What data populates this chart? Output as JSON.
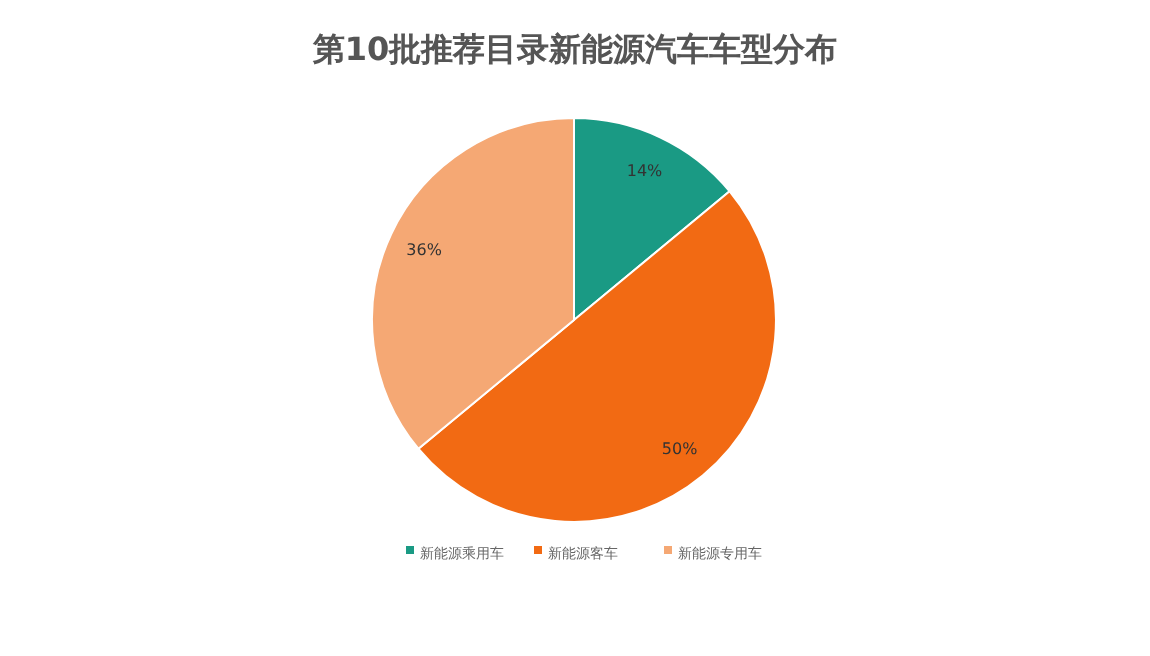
{
  "chart_data": {
    "type": "pie",
    "title": "第10批推荐目录新能源汽车车型分布",
    "categories": [
      "新能源乘用车",
      "新能源客车",
      "新能源专用车"
    ],
    "values": [
      14,
      50,
      36
    ],
    "value_labels": [
      "14%",
      "50%",
      "36%"
    ],
    "colors": [
      "#1a9a84",
      "#f26a13",
      "#f5a874"
    ],
    "legend": "bottom"
  }
}
